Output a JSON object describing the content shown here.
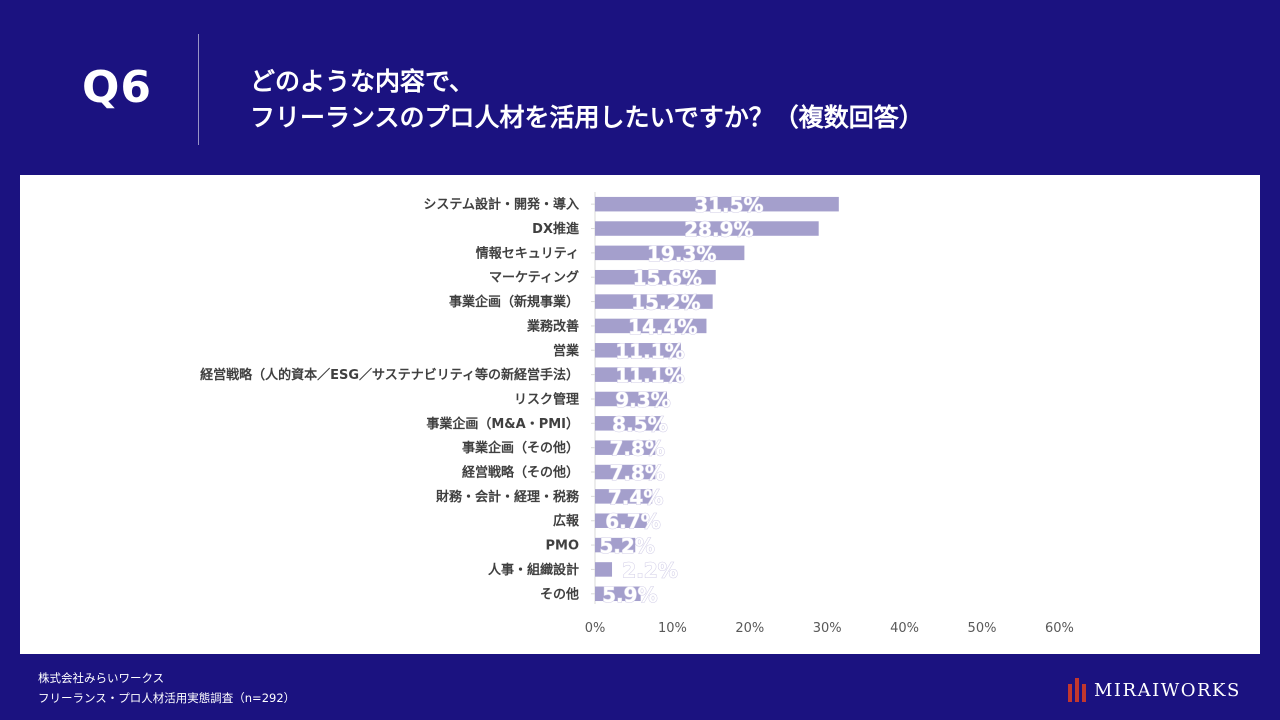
{
  "header": {
    "question_no": "Q6",
    "title_line1": "どのような内容で、",
    "title_line2": "フリーランスのプロ人材を活用したいですか？（複数回答）"
  },
  "chart_data": {
    "type": "bar",
    "orientation": "horizontal",
    "categories": [
      "システム設計・開発・導入",
      "DX推進",
      "情報セキュリティ",
      "マーケティング",
      "事業企画（新規事業）",
      "業務改善",
      "営業",
      "経営戦略（人的資本／ESG／サステナビリティ等の新経営手法）",
      "リスク管理",
      "事業企画（M&A・PMI）",
      "事業企画（その他）",
      "経営戦略（その他）",
      "財務・会計・経理・税務",
      "広報",
      "PMO",
      "人事・組織設計",
      "その他"
    ],
    "values": [
      31.5,
      28.9,
      19.3,
      15.6,
      15.2,
      14.4,
      11.1,
      11.1,
      9.3,
      8.5,
      7.8,
      7.8,
      7.4,
      6.7,
      5.2,
      2.2,
      5.9
    ],
    "bar_lengths": [
      31.5,
      28.9,
      19.3,
      15.6,
      15.2,
      14.4,
      11.1,
      11.1,
      9.3,
      8.5,
      7.8,
      7.8,
      7.4,
      6.7,
      5.2,
      2.2,
      5.9
    ],
    "data_labels": [
      "31.5%",
      "28.9%",
      "19.3%",
      "15.6%",
      "15.2%",
      "14.4%",
      "11.1%",
      "11.1%",
      "9.3%",
      "8.5%",
      "7.8%",
      "7.8%",
      "7.4%",
      "6.7%",
      "5.2%",
      "2.2%",
      "5.9%"
    ],
    "x_ticks": [
      0,
      10,
      20,
      30,
      40,
      50,
      60
    ],
    "x_tick_labels": [
      "0%",
      "10%",
      "20%",
      "30%",
      "40%",
      "50%",
      "60%"
    ],
    "xlim": [
      0,
      60
    ],
    "title": "",
    "xlabel": "",
    "ylabel": "",
    "grid": false,
    "bar_color": "#a49fcc",
    "label_color": "#ffffff",
    "label_outline_color": "#cfcbe6"
  },
  "footer": {
    "company": "株式会社みらいワークス",
    "source": "フリーランス・プロ人材活用実態調査（n=292）"
  },
  "logo": {
    "text": "MIRAIWORKS",
    "mark_color": "#c2372e"
  },
  "colors": {
    "background": "#1b1280",
    "panel": "#ffffff",
    "axis_text": "#595959",
    "category_text": "#404040"
  }
}
